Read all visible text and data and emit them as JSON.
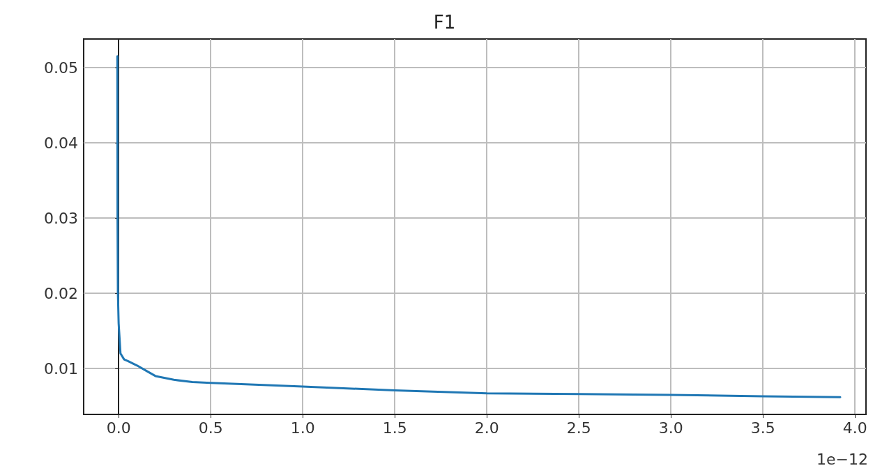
{
  "chart_data": {
    "type": "line",
    "title": "F1",
    "x": [
      -0.007,
      -0.006,
      -0.004,
      0.0,
      0.01,
      0.03,
      0.05,
      0.1,
      0.15,
      0.2,
      0.3,
      0.4,
      0.5,
      1.0,
      1.5,
      2.0,
      2.5,
      3.0,
      3.5,
      3.92
    ],
    "series": [
      {
        "color": "#1f77b4",
        "values": [
          0.0515,
          0.03,
          0.02,
          0.016,
          0.012,
          0.0112,
          0.011,
          0.0104,
          0.0097,
          0.009,
          0.0085,
          0.0082,
          0.0081,
          0.0076,
          0.0071,
          0.0067,
          0.0066,
          0.0065,
          0.0063,
          0.0062
        ]
      }
    ],
    "xlim": [
      -0.19,
      4.06
    ],
    "xticks": [
      {
        "value": 0,
        "label": "0.0"
      },
      0.5,
      {
        "value": 1,
        "label": "1.0"
      },
      1.5,
      {
        "value": 2,
        "label": "2.0"
      },
      2.5,
      {
        "value": 3,
        "label": "3.0"
      },
      3.5,
      {
        "value": 4,
        "label": "4.0"
      }
    ],
    "ylim": [
      0.0039,
      0.0538
    ],
    "yticks": [
      0.01,
      0.02,
      0.03,
      0.04,
      0.05
    ],
    "grid": true,
    "marker": "none",
    "line_style": "solid",
    "annotations": [
      "1e−12"
    ]
  }
}
